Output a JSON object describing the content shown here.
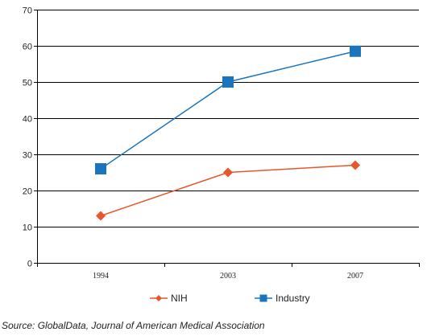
{
  "chart_data": {
    "type": "line",
    "categories": [
      "1994",
      "2003",
      "2007"
    ],
    "series": [
      {
        "name": "NIH",
        "values": [
          13,
          25,
          27
        ],
        "color": "#e8562a",
        "marker": "diamond"
      },
      {
        "name": "Industry",
        "values": [
          26,
          50,
          58.5
        ],
        "color": "#1a75bc",
        "marker": "square"
      }
    ],
    "ylim": [
      0,
      70
    ],
    "yticks": [
      0,
      10,
      20,
      30,
      40,
      50,
      60,
      70
    ],
    "grid": true,
    "legend": "bottom"
  },
  "source": "Source: GlobalData, Journal of American Medical Association"
}
